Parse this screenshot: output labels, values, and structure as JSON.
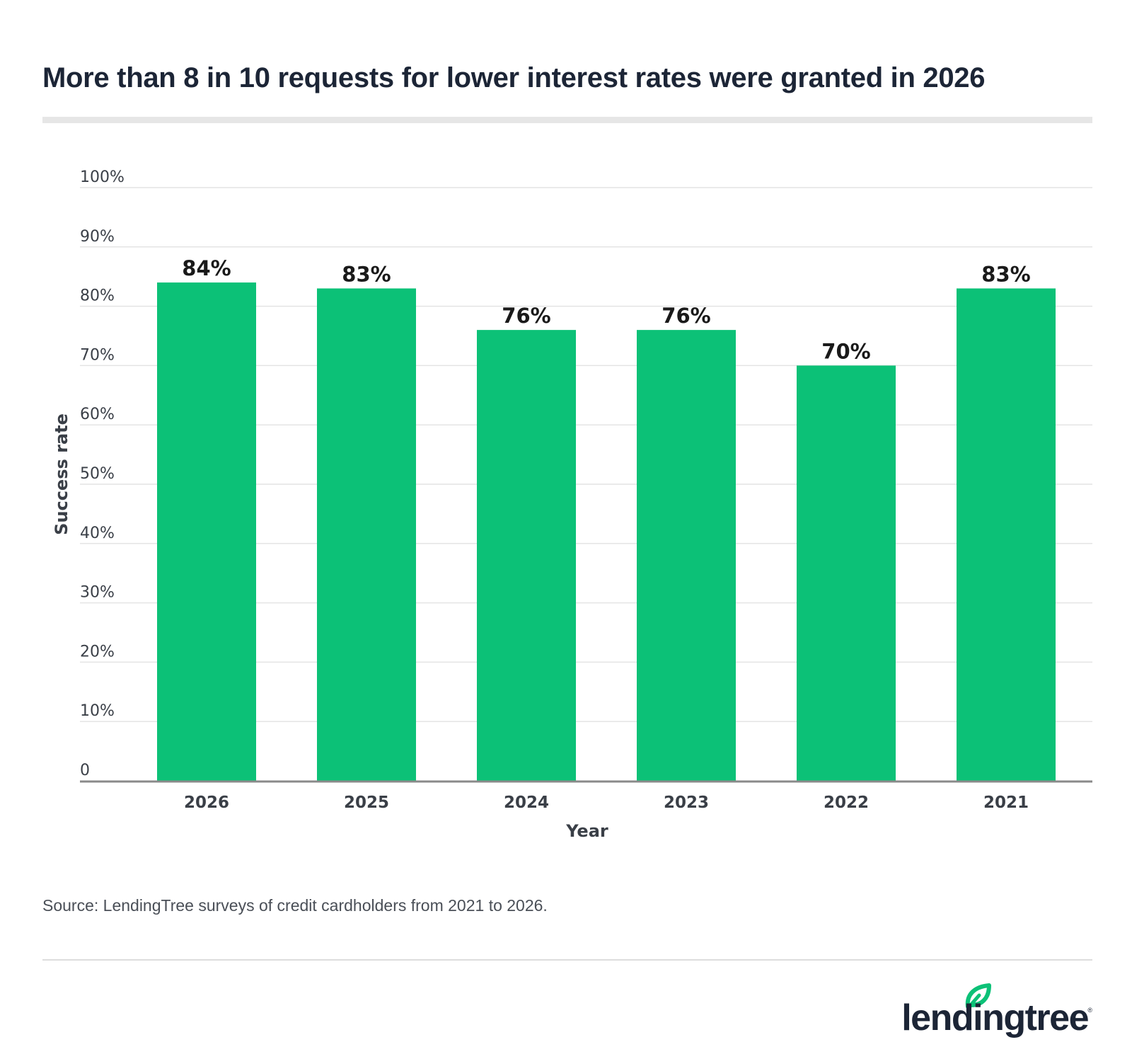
{
  "chart_data": {
    "type": "bar",
    "title": "More than 8 in 10 requests for lower interest rates were granted in 2026",
    "xlabel": "Year",
    "ylabel": "Success rate",
    "categories": [
      "2026",
      "2025",
      "2024",
      "2023",
      "2022",
      "2021"
    ],
    "values": [
      84,
      83,
      76,
      76,
      70,
      83
    ],
    "data_labels": [
      "84%",
      "83%",
      "76%",
      "76%",
      "70%",
      "83%"
    ],
    "ylim": [
      0,
      100
    ],
    "yticks": [
      0,
      10,
      20,
      30,
      40,
      50,
      60,
      70,
      80,
      90,
      100
    ],
    "ytick_labels": [
      "0",
      "10%",
      "20%",
      "30%",
      "40%",
      "50%",
      "60%",
      "70%",
      "80%",
      "90%",
      "100%"
    ],
    "grid": true,
    "bar_color": "#0cc177"
  },
  "source": "Source: LendingTree surveys of credit cardholders from 2021 to 2026.",
  "logo": {
    "text": "lendingtree",
    "accent_color": "#0cc177"
  }
}
